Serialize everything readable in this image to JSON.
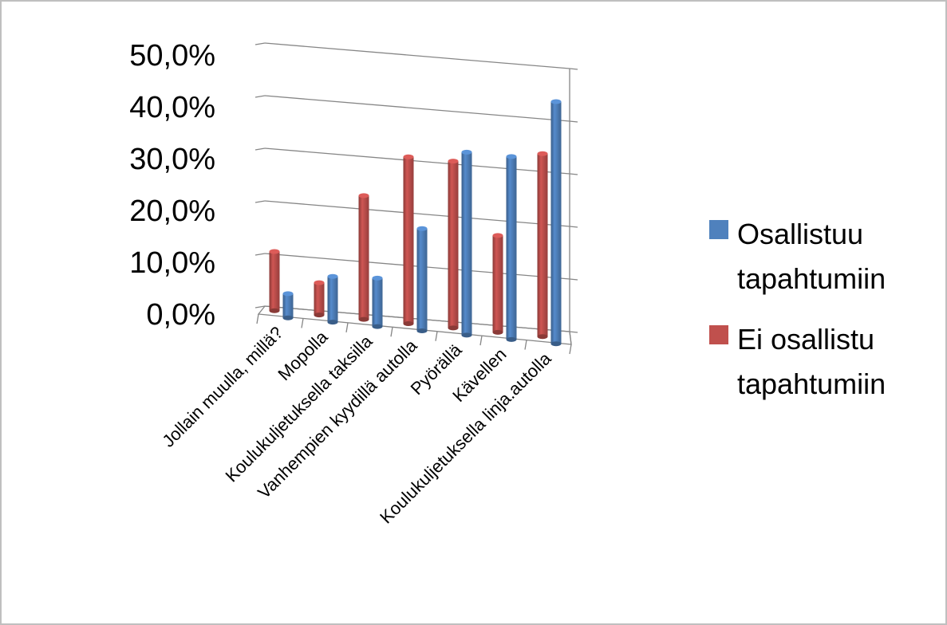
{
  "chart_data": {
    "type": "bar",
    "title": "",
    "xlabel": "",
    "ylabel": "",
    "ylim": [
      0,
      50
    ],
    "y_ticks": [
      "0,0%",
      "10,0%",
      "20,0%",
      "30,0%",
      "40,0%",
      "50,0%"
    ],
    "categories": [
      "Jollain muulla, millä?",
      "Mopolla",
      "Koulukuljetuksella taksilla",
      "Vanhempien kyydillä autolla",
      "Pyörällä",
      "Kävellen",
      "Koulukuljetuksella linja.autolla"
    ],
    "series": [
      {
        "name": "Ei osallistu tapahtumiin",
        "color": "#c0504d",
        "values": [
          11,
          6,
          23,
          31,
          31,
          18,
          34
        ]
      },
      {
        "name": "Osallistuu tapahtumiin",
        "color": "#4f81bd",
        "values": [
          4.5,
          8.5,
          9,
          19,
          34,
          34,
          45
        ]
      }
    ],
    "legend": {
      "position": "right",
      "items": [
        {
          "line1": "Osallistuu",
          "line2": "tapahtumiin",
          "color": "#4f81bd"
        },
        {
          "line1": "Ei osallistu",
          "line2": "tapahtumiin",
          "color": "#c0504d"
        }
      ]
    },
    "grid": true
  }
}
